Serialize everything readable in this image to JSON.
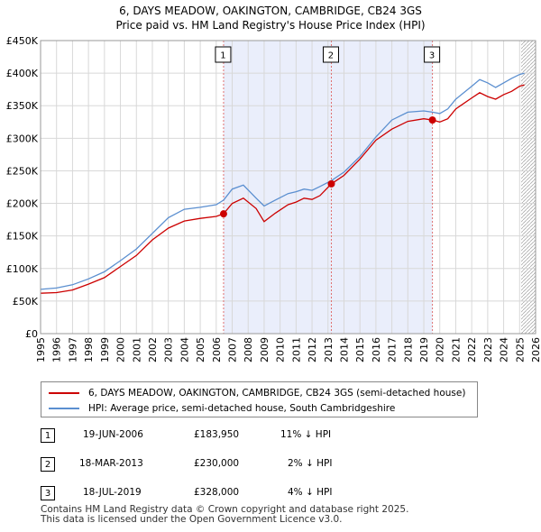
{
  "chart_data": {
    "type": "line",
    "title": "6, DAYS MEADOW, OAKINGTON, CAMBRIDGE, CB24 3GS",
    "subtitle": "Price paid vs. HM Land Registry's House Price Index (HPI)",
    "x_ticks": [
      "1995",
      "1996",
      "1997",
      "1998",
      "1999",
      "2000",
      "2001",
      "2002",
      "2003",
      "2004",
      "2005",
      "2006",
      "2007",
      "2008",
      "2009",
      "2010",
      "2011",
      "2012",
      "2013",
      "2014",
      "2015",
      "2016",
      "2017",
      "2018",
      "2019",
      "2020",
      "2021",
      "2022",
      "2023",
      "2024",
      "2025",
      "2026"
    ],
    "y_ticks": [
      "£0",
      "£50K",
      "£100K",
      "£150K",
      "£200K",
      "£250K",
      "£300K",
      "£350K",
      "£400K",
      "£450K"
    ],
    "xlim": [
      1995,
      2026
    ],
    "ylim": [
      0,
      450000
    ],
    "grid": true,
    "sales": [
      {
        "label": "1",
        "date": 2006.46,
        "price": 183950
      },
      {
        "label": "2",
        "date": 2013.21,
        "price": 230000
      },
      {
        "label": "3",
        "date": 2019.54,
        "price": 328000
      }
    ],
    "series": [
      {
        "name": "6, DAYS MEADOW, OAKINGTON, CAMBRIDGE, CB24 3GS (semi-detached house)",
        "color": "#cc0000",
        "points": [
          [
            1995,
            62000
          ],
          [
            1996,
            63000
          ],
          [
            1997,
            67000
          ],
          [
            1998,
            76000
          ],
          [
            1999,
            86000
          ],
          [
            2000,
            103000
          ],
          [
            2001,
            120000
          ],
          [
            2002,
            144000
          ],
          [
            2003,
            162000
          ],
          [
            2004,
            173000
          ],
          [
            2005,
            177000
          ],
          [
            2006,
            180000
          ],
          [
            2006.46,
            183950
          ],
          [
            2007,
            200000
          ],
          [
            2007.7,
            208000
          ],
          [
            2008.5,
            192000
          ],
          [
            2009,
            172000
          ],
          [
            2009.7,
            185000
          ],
          [
            2010.5,
            198000
          ],
          [
            2011,
            202000
          ],
          [
            2011.5,
            208000
          ],
          [
            2012,
            206000
          ],
          [
            2012.5,
            212000
          ],
          [
            2013.21,
            230000
          ],
          [
            2014,
            243000
          ],
          [
            2015,
            268000
          ],
          [
            2016,
            297000
          ],
          [
            2017,
            314000
          ],
          [
            2018,
            326000
          ],
          [
            2019,
            330000
          ],
          [
            2019.54,
            328000
          ],
          [
            2020,
            325000
          ],
          [
            2020.5,
            330000
          ],
          [
            2021,
            345000
          ],
          [
            2022,
            362000
          ],
          [
            2022.5,
            370000
          ],
          [
            2023,
            364000
          ],
          [
            2023.5,
            360000
          ],
          [
            2024,
            367000
          ],
          [
            2024.5,
            372000
          ],
          [
            2025,
            380000
          ],
          [
            2025.3,
            382000
          ]
        ]
      },
      {
        "name": "HPI: Average price, semi-detached house, South Cambridgeshire",
        "color": "#5b8fd0",
        "points": [
          [
            1995,
            68000
          ],
          [
            1996,
            70000
          ],
          [
            1997,
            75000
          ],
          [
            1998,
            84000
          ],
          [
            1999,
            95000
          ],
          [
            2000,
            112000
          ],
          [
            2001,
            130000
          ],
          [
            2002,
            154000
          ],
          [
            2003,
            178000
          ],
          [
            2004,
            191000
          ],
          [
            2005,
            194000
          ],
          [
            2006,
            198000
          ],
          [
            2006.46,
            205000
          ],
          [
            2007,
            222000
          ],
          [
            2007.7,
            228000
          ],
          [
            2008.5,
            208000
          ],
          [
            2009,
            196000
          ],
          [
            2009.7,
            205000
          ],
          [
            2010.5,
            215000
          ],
          [
            2011,
            218000
          ],
          [
            2011.5,
            222000
          ],
          [
            2012,
            220000
          ],
          [
            2012.5,
            226000
          ],
          [
            2013.21,
            235000
          ],
          [
            2014,
            248000
          ],
          [
            2015,
            272000
          ],
          [
            2016,
            302000
          ],
          [
            2017,
            328000
          ],
          [
            2018,
            340000
          ],
          [
            2019,
            342000
          ],
          [
            2019.54,
            340000
          ],
          [
            2020,
            338000
          ],
          [
            2020.5,
            345000
          ],
          [
            2021,
            360000
          ],
          [
            2022,
            380000
          ],
          [
            2022.5,
            390000
          ],
          [
            2023,
            385000
          ],
          [
            2023.5,
            378000
          ],
          [
            2024,
            385000
          ],
          [
            2024.5,
            392000
          ],
          [
            2025,
            398000
          ],
          [
            2025.3,
            400000
          ]
        ]
      }
    ]
  },
  "legend": {
    "property_label": "6, DAYS MEADOW, OAKINGTON, CAMBRIDGE, CB24 3GS (semi-detached house)",
    "hpi_label": "HPI: Average price, semi-detached house, South Cambridgeshire",
    "property_color": "#cc0000",
    "hpi_color": "#5b8fd0"
  },
  "transactions": [
    {
      "num": "1",
      "date": "19-JUN-2006",
      "price": "£183,950",
      "hpi": "11% ↓ HPI"
    },
    {
      "num": "2",
      "date": "18-MAR-2013",
      "price": "£230,000",
      "hpi": "2% ↓ HPI"
    },
    {
      "num": "3",
      "date": "18-JUL-2019",
      "price": "£328,000",
      "hpi": "4% ↓ HPI"
    }
  ],
  "footer": {
    "line1": "Contains HM Land Registry data © Crown copyright and database right 2025.",
    "line2": "This data is licensed under the Open Government Licence v3.0."
  }
}
